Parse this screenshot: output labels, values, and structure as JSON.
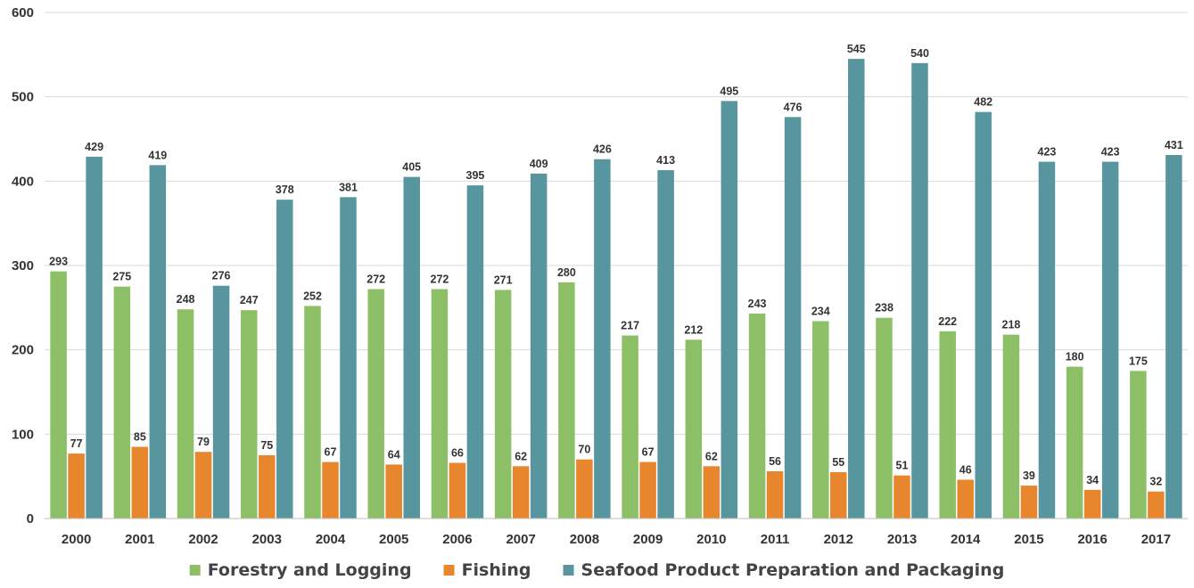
{
  "chart_data": {
    "type": "bar",
    "title": "",
    "xlabel": "",
    "ylabel": "",
    "ylim": [
      0,
      600
    ],
    "yticks": [
      0,
      100,
      200,
      300,
      400,
      500,
      600
    ],
    "grid": true,
    "legend_position": "bottom",
    "categories": [
      "2000",
      "2001",
      "2002",
      "2003",
      "2004",
      "2005",
      "2006",
      "2007",
      "2008",
      "2009",
      "2010",
      "2011",
      "2012",
      "2013",
      "2014",
      "2015",
      "2016",
      "2017"
    ],
    "series": [
      {
        "name": "Forestry and Logging",
        "color": "#8dc066",
        "values": [
          293,
          275,
          248,
          247,
          252,
          272,
          272,
          271,
          280,
          217,
          212,
          243,
          234,
          238,
          222,
          218,
          180,
          175
        ]
      },
      {
        "name": "Fishing",
        "color": "#e8862e",
        "values": [
          77,
          85,
          79,
          75,
          67,
          64,
          66,
          62,
          70,
          67,
          62,
          56,
          55,
          51,
          46,
          39,
          34,
          32
        ]
      },
      {
        "name": "Seafood Product Preparation and Packaging",
        "color": "#57969e",
        "values": [
          429,
          419,
          276,
          378,
          381,
          405,
          395,
          409,
          426,
          413,
          495,
          476,
          545,
          540,
          482,
          423,
          423,
          431
        ]
      }
    ]
  }
}
